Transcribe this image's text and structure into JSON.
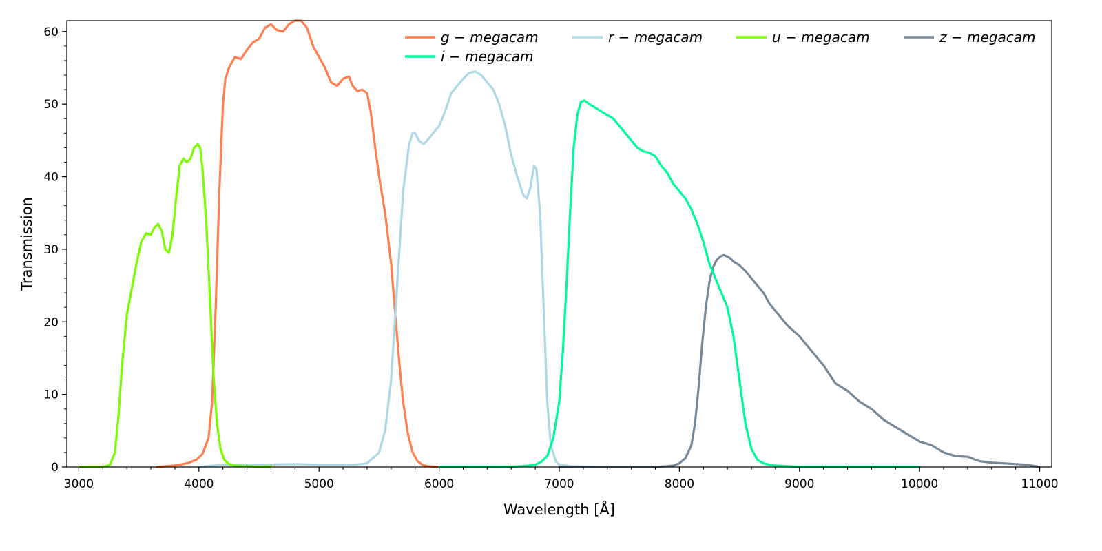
{
  "chart_data": {
    "type": "line",
    "xlabel": "Wavelength [Å]",
    "ylabel": "Transmission",
    "xlim": [
      2900,
      11100
    ],
    "ylim": [
      0,
      61.5
    ],
    "x_ticks": [
      3000,
      4000,
      5000,
      6000,
      7000,
      8000,
      9000,
      10000,
      11000
    ],
    "y_ticks": [
      0,
      10,
      20,
      30,
      40,
      50,
      60
    ],
    "grid": false,
    "legend_position": "top-right",
    "series": [
      {
        "name": "g − megacam",
        "color": "#ff7f50",
        "x": [
          3650,
          3800,
          3900,
          3980,
          4030,
          4080,
          4110,
          4140,
          4170,
          4200,
          4220,
          4250,
          4300,
          4350,
          4400,
          4450,
          4500,
          4550,
          4600,
          4650,
          4700,
          4750,
          4800,
          4850,
          4900,
          4950,
          5000,
          5050,
          5100,
          5150,
          5200,
          5250,
          5280,
          5320,
          5360,
          5400,
          5430,
          5460,
          5500,
          5550,
          5600,
          5640,
          5670,
          5700,
          5740,
          5780,
          5820,
          5860,
          5900,
          6000
        ],
        "y": [
          0,
          0.2,
          0.5,
          1.0,
          1.8,
          4.0,
          9.0,
          22.0,
          38.0,
          50.0,
          53.5,
          55.0,
          56.5,
          56.2,
          57.5,
          58.5,
          59.0,
          60.5,
          61.0,
          60.2,
          60.0,
          61.0,
          61.5,
          61.5,
          60.5,
          58.0,
          56.5,
          55.0,
          53.0,
          52.5,
          53.5,
          53.8,
          52.5,
          51.8,
          52.0,
          51.5,
          49.0,
          45.0,
          40.0,
          35.0,
          28.0,
          20.0,
          14.0,
          9.0,
          4.5,
          2.0,
          0.8,
          0.3,
          0.1,
          0
        ]
      },
      {
        "name": "r − megacam",
        "color": "#add8e6",
        "x": [
          4000,
          4200,
          4500,
          4800,
          5000,
          5300,
          5400,
          5500,
          5550,
          5600,
          5650,
          5700,
          5750,
          5780,
          5800,
          5830,
          5870,
          5900,
          5950,
          6000,
          6050,
          6100,
          6150,
          6200,
          6250,
          6300,
          6350,
          6400,
          6450,
          6500,
          6550,
          6600,
          6650,
          6700,
          6730,
          6760,
          6790,
          6810,
          6840,
          6870,
          6900,
          6930,
          6970,
          7000,
          7100,
          7300
        ],
        "y": [
          0,
          0.3,
          0.3,
          0.4,
          0.3,
          0.3,
          0.5,
          2.0,
          5.0,
          12.0,
          25.0,
          38.0,
          44.5,
          46.0,
          46.0,
          45.0,
          44.5,
          45.0,
          46.0,
          47.0,
          49.0,
          51.5,
          52.5,
          53.5,
          54.3,
          54.5,
          54.0,
          53.0,
          52.0,
          50.0,
          47.0,
          43.0,
          40.0,
          37.5,
          37.0,
          38.5,
          41.5,
          41.0,
          35.0,
          22.0,
          9.0,
          3.0,
          0.8,
          0.3,
          0.1,
          0
        ]
      },
      {
        "name": "u − megacam",
        "color": "#7cfc00",
        "x": [
          3000,
          3200,
          3260,
          3300,
          3330,
          3360,
          3400,
          3440,
          3480,
          3520,
          3560,
          3600,
          3630,
          3660,
          3690,
          3720,
          3750,
          3780,
          3810,
          3840,
          3870,
          3900,
          3930,
          3960,
          3990,
          4010,
          4030,
          4060,
          4090,
          4120,
          4150,
          4180,
          4210,
          4250,
          4300,
          4400,
          4600
        ],
        "y": [
          0,
          0,
          0.3,
          2.0,
          7.0,
          14.0,
          21.0,
          24.5,
          28.0,
          31.0,
          32.2,
          32.0,
          33.0,
          33.5,
          32.5,
          30.0,
          29.5,
          32.0,
          37.0,
          41.5,
          42.5,
          42.0,
          42.5,
          44.0,
          44.5,
          44.0,
          41.0,
          34.0,
          24.0,
          13.0,
          6.0,
          2.5,
          1.0,
          0.4,
          0.2,
          0.1,
          0
        ]
      },
      {
        "name": "z − megacam",
        "color": "#778899",
        "x": [
          7000,
          7500,
          7800,
          7900,
          7950,
          8000,
          8050,
          8100,
          8130,
          8160,
          8190,
          8220,
          8250,
          8280,
          8310,
          8340,
          8370,
          8400,
          8420,
          8450,
          8500,
          8550,
          8600,
          8650,
          8700,
          8750,
          8800,
          8900,
          9000,
          9100,
          9200,
          9300,
          9400,
          9500,
          9600,
          9700,
          9800,
          9900,
          10000,
          10100,
          10200,
          10300,
          10400,
          10500,
          10600,
          10700,
          10800,
          10900,
          11000
        ],
        "y": [
          0,
          0,
          0,
          0.1,
          0.2,
          0.5,
          1.2,
          3.0,
          6.0,
          11.0,
          17.0,
          22.0,
          25.5,
          27.5,
          28.5,
          29.0,
          29.2,
          29.0,
          28.8,
          28.3,
          27.8,
          27.0,
          26.0,
          25.0,
          24.0,
          22.5,
          21.5,
          19.5,
          18.0,
          16.0,
          14.0,
          11.5,
          10.5,
          9.0,
          8.0,
          6.5,
          5.5,
          4.5,
          3.5,
          3.0,
          2.0,
          1.5,
          1.4,
          0.8,
          0.6,
          0.5,
          0.4,
          0.3,
          0
        ]
      },
      {
        "name": "i − megacam",
        "color": "#00fa9a",
        "x": [
          6000,
          6500,
          6700,
          6800,
          6850,
          6900,
          6950,
          7000,
          7030,
          7060,
          7090,
          7120,
          7150,
          7180,
          7210,
          7250,
          7300,
          7350,
          7400,
          7450,
          7500,
          7550,
          7600,
          7650,
          7700,
          7750,
          7800,
          7850,
          7900,
          7950,
          8000,
          8050,
          8100,
          8150,
          8200,
          8250,
          8300,
          8350,
          8400,
          8450,
          8500,
          8550,
          8600,
          8650,
          8700,
          8750,
          8800,
          8900,
          9000,
          9500,
          10000
        ],
        "y": [
          0,
          0,
          0.1,
          0.3,
          0.7,
          1.5,
          4.0,
          9.0,
          16.0,
          25.0,
          35.0,
          44.0,
          48.5,
          50.3,
          50.5,
          50.0,
          49.5,
          49.0,
          48.5,
          48.0,
          47.0,
          46.0,
          45.0,
          44.0,
          43.5,
          43.3,
          42.8,
          41.5,
          40.5,
          39.0,
          38.0,
          37.0,
          35.5,
          33.5,
          31.0,
          28.0,
          26.0,
          24.0,
          22.0,
          18.0,
          12.0,
          6.0,
          2.5,
          1.0,
          0.5,
          0.3,
          0.2,
          0.1,
          0,
          0,
          0
        ]
      }
    ]
  }
}
